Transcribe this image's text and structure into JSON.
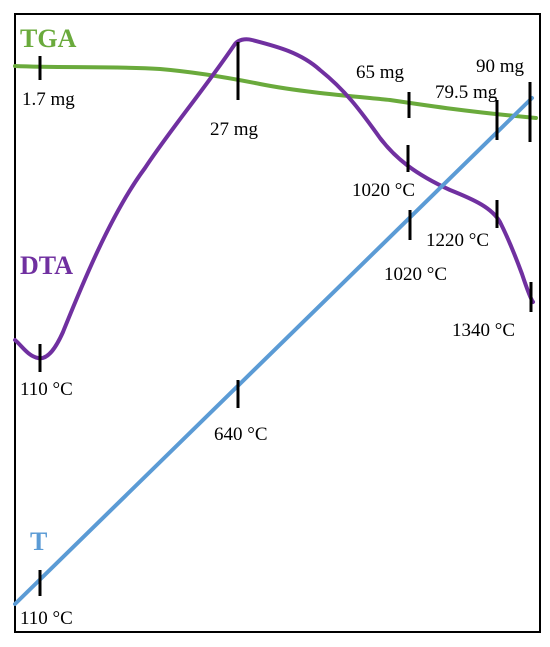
{
  "chart_data": {
    "type": "line",
    "title": "",
    "xlabel": "",
    "ylabel": "",
    "grid": false,
    "colors": {
      "frame": "#000000",
      "tga": "#6aaa3c",
      "dta": "#7030a0",
      "t": "#5b9bd5",
      "marker": "#000000"
    },
    "curve_labels": {
      "tga": "TGA",
      "dta": "DTA",
      "t": "T"
    },
    "series": [
      {
        "name": "TGA",
        "unit": "mg",
        "markers": [
          {
            "x": 0.044,
            "value": 1.7,
            "label": "1.7 mg"
          },
          {
            "x": 0.428,
            "value": 27,
            "label": "27 mg"
          },
          {
            "x": 0.754,
            "value": 65,
            "label": "65 mg"
          },
          {
            "x": 0.917,
            "value": 79.5,
            "label": "79.5 mg"
          },
          {
            "x": 0.982,
            "value": 90,
            "label": "90 mg"
          }
        ]
      },
      {
        "name": "DTA",
        "unit": "°C",
        "markers": [
          {
            "x": 0.044,
            "value": 110,
            "label": "110 °C"
          },
          {
            "x": 0.754,
            "value": 1020,
            "label": "1020 °C"
          },
          {
            "x": 0.917,
            "value": 1220,
            "label": "1220 °C"
          },
          {
            "x": 0.982,
            "value": 1340,
            "label": "1340 °C"
          }
        ]
      },
      {
        "name": "T",
        "unit": "°C",
        "markers": [
          {
            "x": 0.044,
            "value": 110,
            "label": "110 °C"
          },
          {
            "x": 0.428,
            "value": 640,
            "label": "640 °C"
          },
          {
            "x": 0.754,
            "value": 1020,
            "label": "1020 °C"
          }
        ]
      }
    ]
  }
}
